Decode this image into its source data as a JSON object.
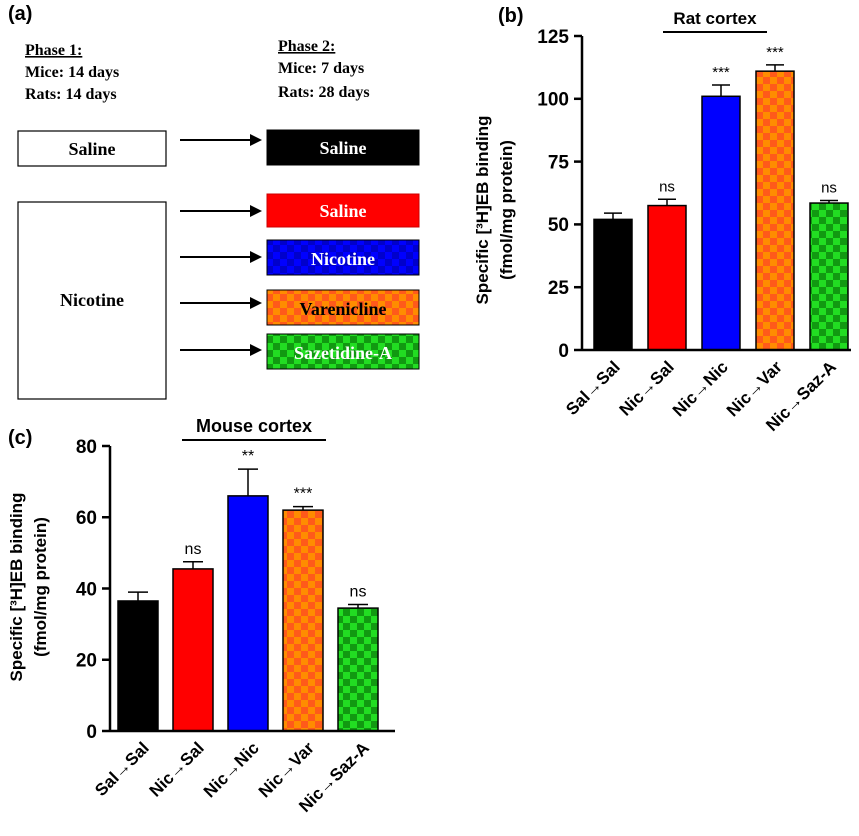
{
  "panel_a": {
    "label": "(a)",
    "phase1": {
      "heading": "Phase 1:",
      "mice": "Mice: 14 days",
      "rats": "Rats:  14 days"
    },
    "phase2": {
      "heading": "Phase 2:",
      "mice": "Mice: 7 days",
      "rats": "Rats:  28 days"
    },
    "phase1_boxes": [
      "Saline",
      "Nicotine"
    ],
    "phase2_boxes": [
      {
        "label": "Saline",
        "color": "#000000",
        "text_color": "#ffffff",
        "pattern": "solid"
      },
      {
        "label": "Saline",
        "color": "#ff0000",
        "text_color": "#ffffff",
        "pattern": "solid"
      },
      {
        "label": "Nicotine",
        "color": "#0000ff",
        "text_color": "#ffffff",
        "pattern": "checker"
      },
      {
        "label": "Varenicline",
        "color": "#ff8c00",
        "text_color": "#000000",
        "pattern": "checker"
      },
      {
        "label": "Sazetidine-A",
        "color": "#22cc22",
        "text_color": "#ffffff",
        "pattern": "checker"
      }
    ]
  },
  "chart_data": [
    {
      "panel": "(b)",
      "type": "bar",
      "title": "Rat cortex",
      "ylabel_line1": "Specific [³H]EB binding",
      "ylabel_line2": "(fmol/mg protein)",
      "categories": [
        "Sal→Sal",
        "Nic→Sal",
        "Nic→Nic",
        "Nic→Var",
        "Nic→Saz-A"
      ],
      "values": [
        52,
        57.5,
        101,
        111,
        58.5
      ],
      "errors": [
        2.5,
        2.5,
        4.5,
        2.5,
        1
      ],
      "significance": [
        "",
        "ns",
        "***",
        "***",
        "ns"
      ],
      "colors": [
        "#000000",
        "#ff0000",
        "#0000ff",
        "#ff8c00",
        "#22cc22"
      ],
      "patterns": [
        "solid",
        "solid",
        "solid",
        "checker",
        "checker"
      ],
      "ylim": [
        0,
        125
      ],
      "yticks": [
        0,
        25,
        50,
        75,
        100,
        125
      ]
    },
    {
      "panel": "(c)",
      "type": "bar",
      "title": "Mouse cortex",
      "ylabel_line1": "Specific [³H]EB binding",
      "ylabel_line2": "(fmol/mg protein)",
      "categories": [
        "Sal→Sal",
        "Nic→Sal",
        "Nic→Nic",
        "Nic→Var",
        "Nic→Saz-A"
      ],
      "values": [
        36.5,
        45.5,
        66,
        62,
        34.5
      ],
      "errors": [
        2.5,
        2,
        7.5,
        1,
        1
      ],
      "significance": [
        "",
        "ns",
        "**",
        "***",
        "ns"
      ],
      "colors": [
        "#000000",
        "#ff0000",
        "#0000ff",
        "#ff8c00",
        "#22cc22"
      ],
      "patterns": [
        "solid",
        "solid",
        "solid",
        "checker",
        "checker"
      ],
      "ylim": [
        0,
        80
      ],
      "yticks": [
        0,
        20,
        40,
        60,
        80
      ]
    }
  ]
}
